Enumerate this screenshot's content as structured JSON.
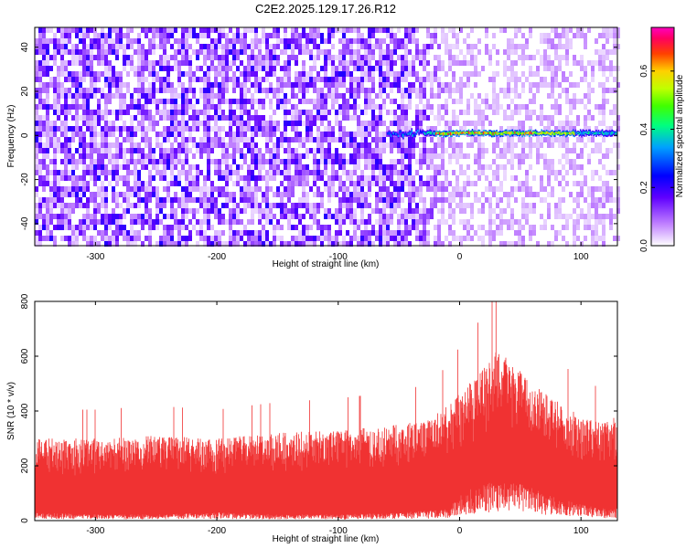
{
  "title": "C2E2.2025.129.17.26.R12",
  "chart_data": [
    {
      "type": "heatmap",
      "xlabel": "Height of straight line (km)",
      "ylabel": "Frequency (Hz)",
      "xlim": [
        -350,
        130
      ],
      "ylim": [
        -50,
        49
      ],
      "xticks": [
        -300,
        -200,
        -100,
        0,
        100
      ],
      "yticks": [
        -40,
        -20,
        0,
        20,
        40
      ],
      "colorbar": {
        "label": "Normalized spectral amplitude",
        "range": [
          0.0,
          0.75
        ],
        "ticks": [
          0.0,
          0.2,
          0.4,
          0.6
        ],
        "colormap": "white-purple-blue-cyan-green-yellow-red-magenta"
      },
      "features": {
        "noise_floor_amplitude_low_height": 0.08,
        "noise_floor_amplitude_high_height": 0.03,
        "noise_transition_height_km": -25,
        "signal_line": {
          "frequency_hz": 1,
          "x_start_km": -60,
          "x_end_km": 130,
          "peak_amplitude": 0.7,
          "peak_region_km": [
            -20,
            60
          ]
        }
      }
    },
    {
      "type": "area",
      "xlabel": "Height of straight line (km)",
      "ylabel": "SNR (10 * v/v)",
      "xlim": [
        -350,
        130
      ],
      "ylim": [
        0,
        800
      ],
      "xticks": [
        -300,
        -200,
        -100,
        0,
        100
      ],
      "yticks": [
        0,
        200,
        400,
        600,
        800
      ],
      "color": "#f03232",
      "envelope": {
        "x": [
          -350,
          -300,
          -250,
          -200,
          -150,
          -100,
          -50,
          -25,
          -10,
          0,
          10,
          20,
          30,
          40,
          50,
          60,
          75,
          100,
          115,
          130
        ],
        "upper": [
          300,
          300,
          310,
          300,
          320,
          330,
          350,
          370,
          420,
          470,
          510,
          560,
          620,
          590,
          550,
          500,
          450,
          380,
          360,
          380
        ],
        "lower": [
          20,
          15,
          15,
          20,
          15,
          15,
          20,
          25,
          30,
          60,
          80,
          90,
          110,
          100,
          90,
          80,
          60,
          40,
          30,
          30
        ]
      },
      "peak_snr": 800
    }
  ]
}
